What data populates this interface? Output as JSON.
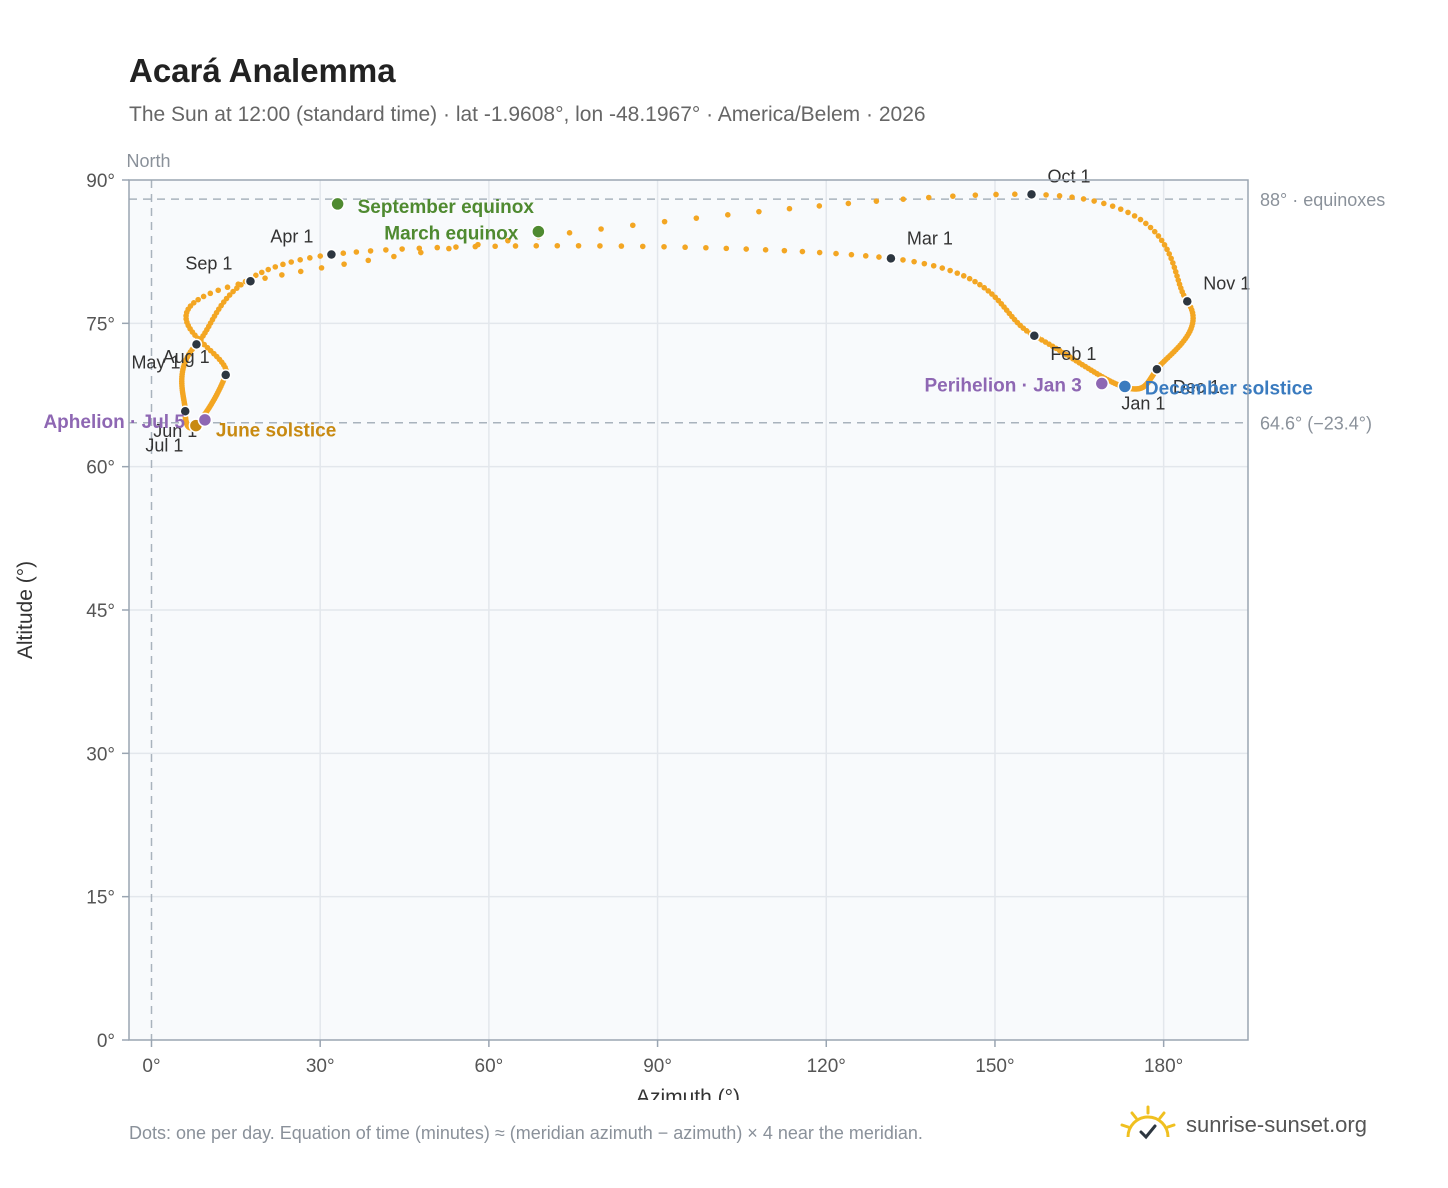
{
  "header": {
    "title": "Acará Analemma",
    "subtitle": "The Sun at 12:00 (standard time) · lat -1.9608°, lon -48.1967° · America/Belem · 2026"
  },
  "footer": {
    "footnote": "Dots: one per day. Equation of time (minutes) ≈ (meridian azimuth − azimuth) × 4 near the meridian.",
    "brand": "sunrise-sunset.org",
    "brand_icon": "sun-logo-icon"
  },
  "colors": {
    "curve": "#f3a623",
    "month_marker": "#2d3640",
    "equinox": "#4f8a30",
    "june_solstice": "#c88a12",
    "december_solstice": "#3a7bbf",
    "apsis": "#8e67b3",
    "plot_bg": "#f8fafc",
    "grid": "#e3e7ec",
    "frame": "#9aa5b2",
    "reference": "#a9b3bd"
  },
  "chart_data": {
    "type": "scatter",
    "title": "Acará Analemma",
    "xlabel": "Azimuth (°)",
    "ylabel": "Altitude (°)",
    "xlim": [
      -4,
      195
    ],
    "ylim": [
      0,
      90
    ],
    "x_ticks": [
      0,
      30,
      60,
      90,
      120,
      150,
      180
    ],
    "x_tick_labels": [
      "0°",
      "30°",
      "60°",
      "90°",
      "120°",
      "150°",
      "180°"
    ],
    "y_ticks": [
      0,
      15,
      30,
      45,
      60,
      75,
      90
    ],
    "y_tick_labels": [
      "0°",
      "15°",
      "30°",
      "45°",
      "60°",
      "75°",
      "90°"
    ],
    "grid": true,
    "reference_lines": [
      {
        "axis": "y",
        "value": 88,
        "label": "88° · equinoxes"
      },
      {
        "axis": "y",
        "value": 64.6,
        "label": "64.6° (−23.4°)"
      },
      {
        "axis": "x",
        "value": 0,
        "label": "North"
      }
    ],
    "month_markers": [
      {
        "label": "Jan 1",
        "az": 173.2,
        "alt": 68.3
      },
      {
        "label": "Feb 1",
        "az": 157.0,
        "alt": 73.7
      },
      {
        "label": "Mar 1",
        "az": 131.5,
        "alt": 81.8
      },
      {
        "label": "Apr 1",
        "az": 32.0,
        "alt": 82.2
      },
      {
        "label": "May 1",
        "az": 8.0,
        "alt": 72.8
      },
      {
        "label": "Jun 1",
        "az": 6.0,
        "alt": 65.8
      },
      {
        "label": "Jul 1",
        "az": 7.8,
        "alt": 64.3
      },
      {
        "label": "Aug 1",
        "az": 13.2,
        "alt": 69.6
      },
      {
        "label": "Sep 1",
        "az": 17.6,
        "alt": 79.4
      },
      {
        "label": "Oct 1",
        "az": 156.5,
        "alt": 88.5
      },
      {
        "label": "Nov 1",
        "az": 184.2,
        "alt": 77.3
      },
      {
        "label": "Dec 1",
        "az": 178.8,
        "alt": 70.2
      }
    ],
    "events": [
      {
        "label": "March equinox",
        "az": 68.8,
        "alt": 84.6,
        "kind": "equinox"
      },
      {
        "label": "June solstice",
        "az": 7.9,
        "alt": 64.3,
        "kind": "june_solstice"
      },
      {
        "label": "September equinox",
        "az": 33.1,
        "alt": 87.5,
        "kind": "equinox"
      },
      {
        "label": "December solstice",
        "az": 173.1,
        "alt": 68.4,
        "kind": "december_solstice"
      },
      {
        "label": "Perihelion · Jan 3",
        "az": 169.0,
        "alt": 68.7,
        "kind": "apsis"
      },
      {
        "label": "Aphelion · Jul 5",
        "az": 9.5,
        "alt": 64.9,
        "kind": "apsis"
      }
    ]
  }
}
